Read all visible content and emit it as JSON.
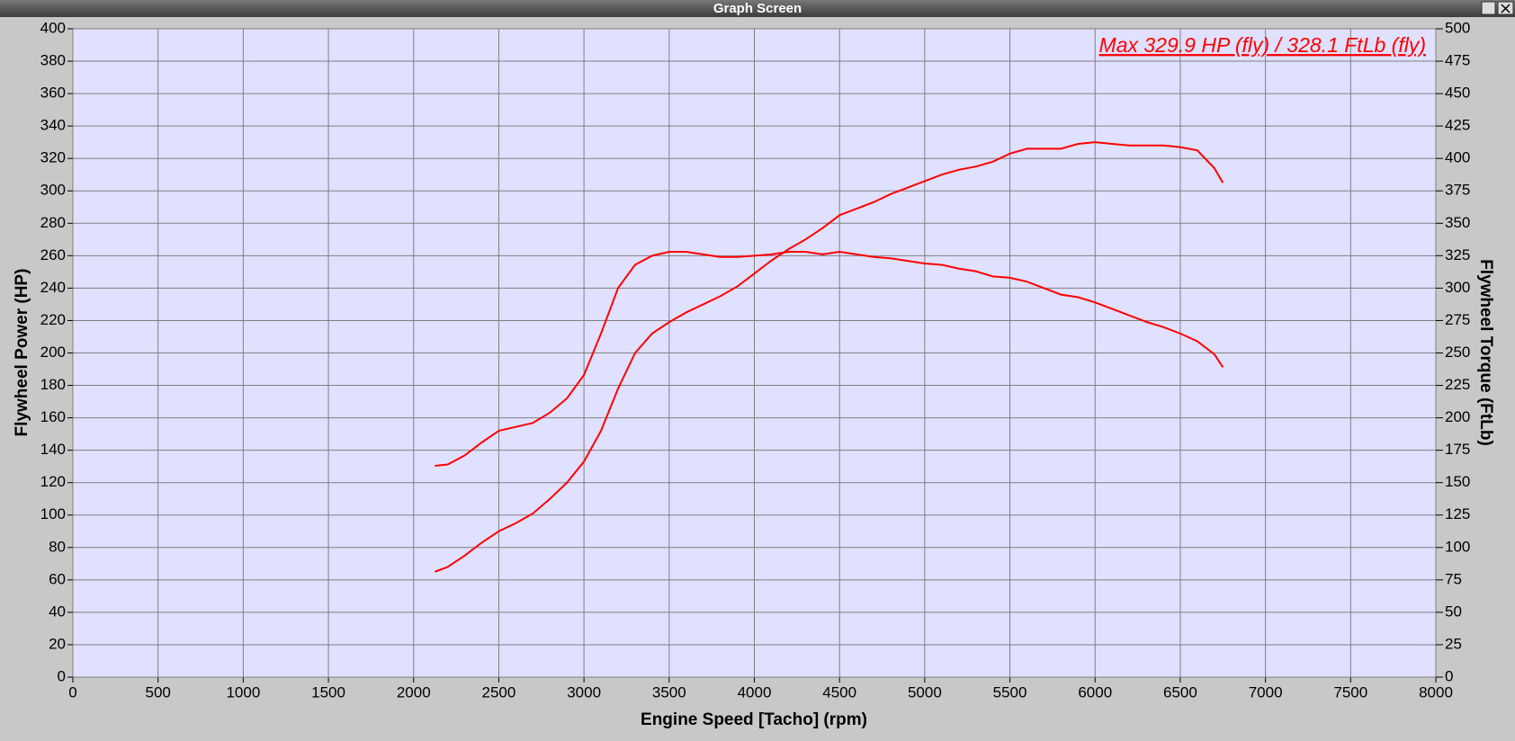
{
  "window_title": "Graph Screen",
  "chart_data": {
    "type": "line",
    "annotation": "Max 329.9 HP (fly) / 328.1 FtLb (fly)",
    "xlabel": "Engine Speed [Tacho] (rpm)",
    "ylabel": "Flywheel Power (HP)",
    "y2label": "Flywheel Torque (FtLb)",
    "x": [
      2125,
      2200,
      2300,
      2400,
      2500,
      2600,
      2700,
      2800,
      2900,
      3000,
      3100,
      3200,
      3300,
      3400,
      3500,
      3600,
      3700,
      3800,
      3900,
      4000,
      4100,
      4200,
      4300,
      4400,
      4500,
      4600,
      4700,
      4800,
      4900,
      5000,
      5100,
      5200,
      5300,
      5400,
      5500,
      5600,
      5700,
      5800,
      5900,
      6000,
      6100,
      6200,
      6300,
      6400,
      6500,
      6600,
      6700,
      6750
    ],
    "series": [
      {
        "color": "#ff0000",
        "values": [
          65,
          68,
          75,
          83,
          90,
          95,
          101,
          110,
          120,
          133,
          152,
          178,
          200,
          212,
          219,
          225,
          230,
          235,
          241,
          249,
          257,
          264,
          270,
          277,
          285,
          289,
          293,
          298,
          302,
          306,
          310,
          313,
          315,
          318,
          323,
          326,
          326,
          326,
          329,
          330,
          329,
          328,
          328,
          328,
          327,
          325,
          314,
          305
        ]
      },
      {
        "color": "#ff0000",
        "axis": "y2",
        "values": [
          163,
          164,
          171,
          181,
          190,
          193,
          196,
          204,
          215,
          233,
          265,
          300,
          318,
          325,
          328,
          328,
          326,
          324,
          324,
          325,
          326,
          328,
          328,
          326,
          328,
          326,
          324,
          323,
          321,
          319,
          318,
          315,
          313,
          309,
          308,
          305,
          300,
          295,
          293,
          289,
          284,
          279,
          274,
          270,
          265,
          259,
          249,
          239
        ]
      }
    ],
    "xlim": [
      0,
      8000
    ],
    "xticks": [
      0,
      500,
      1000,
      1500,
      2000,
      2500,
      3000,
      3500,
      4000,
      4500,
      5000,
      5500,
      6000,
      6500,
      7000,
      7500,
      8000
    ],
    "ylim": [
      0,
      400
    ],
    "yticks": [
      0,
      20,
      40,
      60,
      80,
      100,
      120,
      140,
      160,
      180,
      200,
      220,
      240,
      260,
      280,
      300,
      320,
      340,
      360,
      380,
      400
    ],
    "y2lim": [
      0,
      500
    ],
    "y2ticks": [
      0,
      25,
      50,
      75,
      100,
      125,
      150,
      175,
      200,
      225,
      250,
      275,
      300,
      325,
      350,
      375,
      400,
      425,
      450,
      475,
      500
    ],
    "grid": true
  }
}
